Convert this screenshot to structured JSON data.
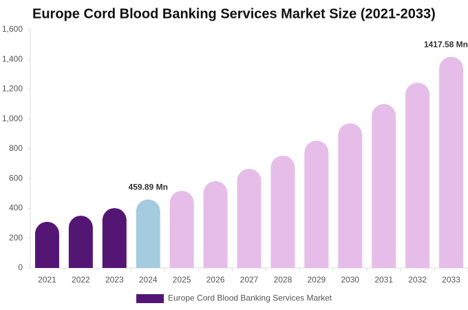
{
  "chart_data": {
    "type": "bar",
    "title": "Europe Cord Blood Banking Services Market Size (2021-2033)",
    "categories": [
      "2021",
      "2022",
      "2023",
      "2024",
      "2025",
      "2026",
      "2027",
      "2028",
      "2029",
      "2030",
      "2031",
      "2032",
      "2033"
    ],
    "series": [
      {
        "name": "Europe Cord Blood Banking Services Market",
        "color": "#541675",
        "values": [
          310,
          351,
          402,
          459.89,
          518,
          583,
          666,
          754,
          855,
          971,
          1101,
          1244,
          1417.58
        ],
        "value_labels": [
          null,
          null,
          null,
          "459.89 Mn",
          null,
          null,
          null,
          null,
          null,
          null,
          null,
          null,
          "1417.58 Mn"
        ]
      }
    ],
    "bar_colors": [
      "#541675",
      "#541675",
      "#541675",
      "#a5cbde",
      "#e6bde8",
      "#e6bde8",
      "#e6bde8",
      "#e6bde8",
      "#e6bde8",
      "#e6bde8",
      "#e6bde8",
      "#e6bde8",
      "#e6bde8"
    ],
    "ylim": [
      0,
      1600
    ],
    "yticks": [
      0,
      200,
      400,
      600,
      800,
      {
        "value": 1000,
        "label": "1,000"
      },
      {
        "value": 1200,
        "label": "1,200"
      },
      {
        "value": 1400,
        "label": "1,400"
      },
      {
        "value": 1600,
        "label": "1,600"
      }
    ],
    "grid": false,
    "legend": "bottom"
  }
}
